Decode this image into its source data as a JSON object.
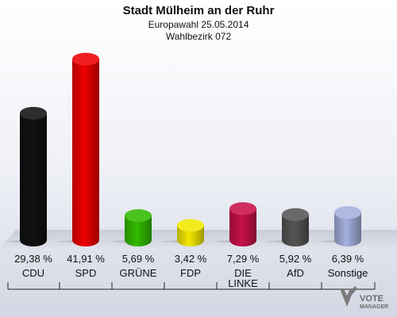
{
  "chart_data": {
    "type": "bar",
    "title": "Stadt Mülheim an der Ruhr",
    "subtitle_1": "Europawahl 25.05.2014",
    "subtitle_2": "Wahlbezirk 072",
    "categories": [
      "CDU",
      "SPD",
      "GRÜNE",
      "FDP",
      "DIE LINKE",
      "AfD",
      "Sonstige"
    ],
    "values": [
      29.38,
      41.91,
      5.69,
      3.42,
      7.29,
      5.92,
      6.39
    ],
    "value_labels": [
      "29,38 %",
      "41,91 %",
      "5,69 %",
      "3,42 %",
      "7,29 %",
      "5,92 %",
      "6,39 %"
    ],
    "colors": [
      "#111111",
      "#ee0000",
      "#33bb00",
      "#f2e800",
      "#c8104a",
      "#555555",
      "#a4b0de"
    ],
    "ylim": [
      0,
      45
    ],
    "grid": false,
    "legend": "none"
  },
  "logo": {
    "line_1": "VOTE",
    "line_2": "MANAGER"
  }
}
